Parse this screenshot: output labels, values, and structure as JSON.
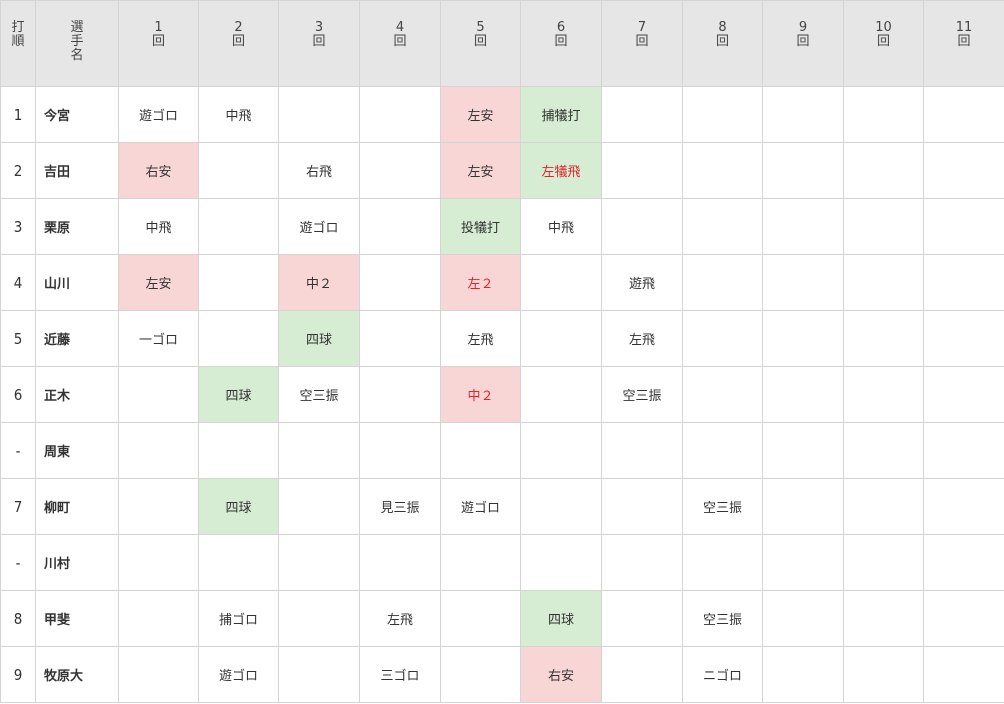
{
  "header": {
    "order": "打順",
    "player": "選手名",
    "innings": [
      "1回",
      "2回",
      "3回",
      "4回",
      "5回",
      "6回",
      "7回",
      "8回",
      "9回",
      "10回",
      "11回"
    ]
  },
  "rows": [
    {
      "order": "1",
      "name": "今宮",
      "cells": [
        {
          "t": "遊ゴロ",
          "k": ""
        },
        {
          "t": "中飛",
          "k": ""
        },
        {
          "t": "",
          "k": ""
        },
        {
          "t": "",
          "k": ""
        },
        {
          "t": "左安",
          "k": "hit"
        },
        {
          "t": "捕犠打",
          "k": "walk"
        },
        {
          "t": "",
          "k": ""
        },
        {
          "t": "",
          "k": ""
        },
        {
          "t": "",
          "k": ""
        },
        {
          "t": "",
          "k": ""
        },
        {
          "t": "",
          "k": ""
        }
      ]
    },
    {
      "order": "2",
      "name": "吉田",
      "cells": [
        {
          "t": "右安",
          "k": "hit"
        },
        {
          "t": "",
          "k": ""
        },
        {
          "t": "右飛",
          "k": ""
        },
        {
          "t": "",
          "k": ""
        },
        {
          "t": "左安",
          "k": "hit"
        },
        {
          "t": "左犠飛",
          "k": "walk red"
        },
        {
          "t": "",
          "k": ""
        },
        {
          "t": "",
          "k": ""
        },
        {
          "t": "",
          "k": ""
        },
        {
          "t": "",
          "k": ""
        },
        {
          "t": "",
          "k": ""
        }
      ]
    },
    {
      "order": "3",
      "name": "栗原",
      "cells": [
        {
          "t": "中飛",
          "k": ""
        },
        {
          "t": "",
          "k": ""
        },
        {
          "t": "遊ゴロ",
          "k": ""
        },
        {
          "t": "",
          "k": ""
        },
        {
          "t": "投犠打",
          "k": "walk"
        },
        {
          "t": "中飛",
          "k": ""
        },
        {
          "t": "",
          "k": ""
        },
        {
          "t": "",
          "k": ""
        },
        {
          "t": "",
          "k": ""
        },
        {
          "t": "",
          "k": ""
        },
        {
          "t": "",
          "k": ""
        }
      ]
    },
    {
      "order": "4",
      "name": "山川",
      "cells": [
        {
          "t": "左安",
          "k": "hit"
        },
        {
          "t": "",
          "k": ""
        },
        {
          "t": "中２",
          "k": "hit"
        },
        {
          "t": "",
          "k": ""
        },
        {
          "t": "左２",
          "k": "hit red"
        },
        {
          "t": "",
          "k": ""
        },
        {
          "t": "遊飛",
          "k": ""
        },
        {
          "t": "",
          "k": ""
        },
        {
          "t": "",
          "k": ""
        },
        {
          "t": "",
          "k": ""
        },
        {
          "t": "",
          "k": ""
        }
      ]
    },
    {
      "order": "5",
      "name": "近藤",
      "cells": [
        {
          "t": "一ゴロ",
          "k": ""
        },
        {
          "t": "",
          "k": ""
        },
        {
          "t": "四球",
          "k": "walk"
        },
        {
          "t": "",
          "k": ""
        },
        {
          "t": "左飛",
          "k": ""
        },
        {
          "t": "",
          "k": ""
        },
        {
          "t": "左飛",
          "k": ""
        },
        {
          "t": "",
          "k": ""
        },
        {
          "t": "",
          "k": ""
        },
        {
          "t": "",
          "k": ""
        },
        {
          "t": "",
          "k": ""
        }
      ]
    },
    {
      "order": "6",
      "name": "正木",
      "cells": [
        {
          "t": "",
          "k": ""
        },
        {
          "t": "四球",
          "k": "walk"
        },
        {
          "t": "空三振",
          "k": ""
        },
        {
          "t": "",
          "k": ""
        },
        {
          "t": "中２",
          "k": "hit red"
        },
        {
          "t": "",
          "k": ""
        },
        {
          "t": "空三振",
          "k": ""
        },
        {
          "t": "",
          "k": ""
        },
        {
          "t": "",
          "k": ""
        },
        {
          "t": "",
          "k": ""
        },
        {
          "t": "",
          "k": ""
        }
      ]
    },
    {
      "order": "-",
      "name": "周東",
      "cells": [
        {
          "t": "",
          "k": ""
        },
        {
          "t": "",
          "k": ""
        },
        {
          "t": "",
          "k": ""
        },
        {
          "t": "",
          "k": ""
        },
        {
          "t": "",
          "k": ""
        },
        {
          "t": "",
          "k": ""
        },
        {
          "t": "",
          "k": ""
        },
        {
          "t": "",
          "k": ""
        },
        {
          "t": "",
          "k": ""
        },
        {
          "t": "",
          "k": ""
        },
        {
          "t": "",
          "k": ""
        }
      ]
    },
    {
      "order": "7",
      "name": "柳町",
      "cells": [
        {
          "t": "",
          "k": ""
        },
        {
          "t": "四球",
          "k": "walk"
        },
        {
          "t": "",
          "k": ""
        },
        {
          "t": "見三振",
          "k": ""
        },
        {
          "t": "遊ゴロ",
          "k": ""
        },
        {
          "t": "",
          "k": ""
        },
        {
          "t": "",
          "k": ""
        },
        {
          "t": "空三振",
          "k": ""
        },
        {
          "t": "",
          "k": ""
        },
        {
          "t": "",
          "k": ""
        },
        {
          "t": "",
          "k": ""
        }
      ]
    },
    {
      "order": "-",
      "name": "川村",
      "cells": [
        {
          "t": "",
          "k": ""
        },
        {
          "t": "",
          "k": ""
        },
        {
          "t": "",
          "k": ""
        },
        {
          "t": "",
          "k": ""
        },
        {
          "t": "",
          "k": ""
        },
        {
          "t": "",
          "k": ""
        },
        {
          "t": "",
          "k": ""
        },
        {
          "t": "",
          "k": ""
        },
        {
          "t": "",
          "k": ""
        },
        {
          "t": "",
          "k": ""
        },
        {
          "t": "",
          "k": ""
        }
      ]
    },
    {
      "order": "8",
      "name": "甲斐",
      "cells": [
        {
          "t": "",
          "k": ""
        },
        {
          "t": "捕ゴロ",
          "k": ""
        },
        {
          "t": "",
          "k": ""
        },
        {
          "t": "左飛",
          "k": ""
        },
        {
          "t": "",
          "k": ""
        },
        {
          "t": "四球",
          "k": "walk"
        },
        {
          "t": "",
          "k": ""
        },
        {
          "t": "空三振",
          "k": ""
        },
        {
          "t": "",
          "k": ""
        },
        {
          "t": "",
          "k": ""
        },
        {
          "t": "",
          "k": ""
        }
      ]
    },
    {
      "order": "9",
      "name": "牧原大",
      "cells": [
        {
          "t": "",
          "k": ""
        },
        {
          "t": "遊ゴロ",
          "k": ""
        },
        {
          "t": "",
          "k": ""
        },
        {
          "t": "三ゴロ",
          "k": ""
        },
        {
          "t": "",
          "k": ""
        },
        {
          "t": "右安",
          "k": "hit"
        },
        {
          "t": "",
          "k": ""
        },
        {
          "t": "ニゴロ",
          "k": ""
        },
        {
          "t": "",
          "k": ""
        },
        {
          "t": "",
          "k": ""
        },
        {
          "t": "",
          "k": ""
        }
      ]
    }
  ],
  "colors": {
    "hit_bg": "#f9d6d6",
    "walk_bg": "#d6ecd3",
    "rbi_text": "#e0262a",
    "header_bg": "#e6e6e6",
    "border": "#d4d4d4"
  }
}
